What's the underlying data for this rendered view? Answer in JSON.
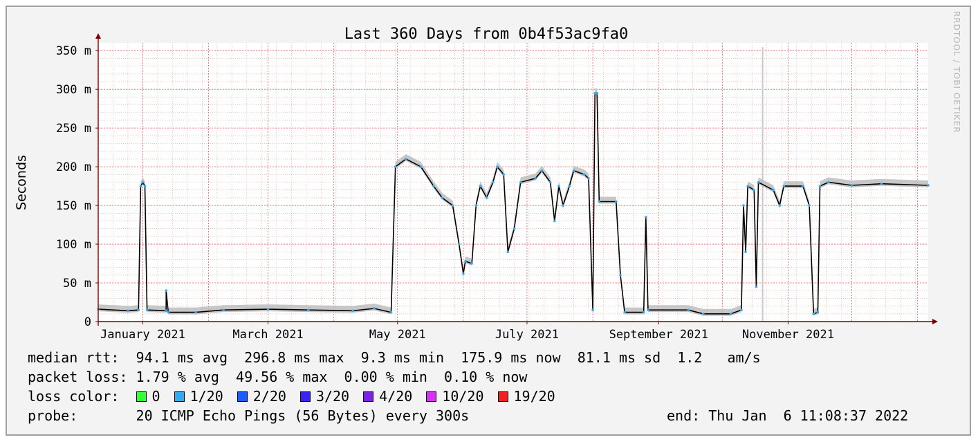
{
  "chart_data": {
    "type": "line",
    "title": "Last 360 Days from 0b4f53ac9fa0",
    "ylabel": "Seconds",
    "xlabel": "",
    "ylim": [
      0,
      0.36
    ],
    "y_ticks": [
      {
        "value": 0,
        "label": "0"
      },
      {
        "value": 0.05,
        "label": "50 m"
      },
      {
        "value": 0.1,
        "label": "100 m"
      },
      {
        "value": 0.15,
        "label": "150 m"
      },
      {
        "value": 0.2,
        "label": "200 m"
      },
      {
        "value": 0.25,
        "label": "250 m"
      },
      {
        "value": 0.3,
        "label": "300 m"
      },
      {
        "value": 0.35,
        "label": "350 m"
      }
    ],
    "x_range": [
      "2020-12-11",
      "2022-01-06"
    ],
    "x_ticks": [
      {
        "date": "2021-01-01",
        "label": "January 2021"
      },
      {
        "date": "2021-03-01",
        "label": "March 2021"
      },
      {
        "date": "2021-05-01",
        "label": "May 2021"
      },
      {
        "date": "2021-07-01",
        "label": "July 2021"
      },
      {
        "date": "2021-09-01",
        "label": "September 2021"
      },
      {
        "date": "2021-11-01",
        "label": "November 2021"
      }
    ],
    "grid": true,
    "series": [
      {
        "name": "median rtt",
        "color": "#000000",
        "points": [
          [
            "2020-12-11",
            0.016
          ],
          [
            "2020-12-25",
            0.014
          ],
          [
            "2020-12-30",
            0.015
          ],
          [
            "2020-12-31",
            0.175
          ],
          [
            "2021-01-01",
            0.18
          ],
          [
            "2021-01-02",
            0.175
          ],
          [
            "2021-01-03",
            0.015
          ],
          [
            "2021-01-12",
            0.014
          ],
          [
            "2021-01-12",
            0.04
          ],
          [
            "2021-01-13",
            0.012
          ],
          [
            "2021-01-26",
            0.012
          ],
          [
            "2021-02-08",
            0.015
          ],
          [
            "2021-03-01",
            0.016
          ],
          [
            "2021-03-20",
            0.015
          ],
          [
            "2021-04-10",
            0.014
          ],
          [
            "2021-04-20",
            0.017
          ],
          [
            "2021-04-28",
            0.012
          ],
          [
            "2021-04-30",
            0.2
          ],
          [
            "2021-05-05",
            0.21
          ],
          [
            "2021-05-12",
            0.2
          ],
          [
            "2021-05-18",
            0.175
          ],
          [
            "2021-05-22",
            0.16
          ],
          [
            "2021-05-27",
            0.15
          ],
          [
            "2021-05-30",
            0.1
          ],
          [
            "2021-06-01",
            0.062
          ],
          [
            "2021-06-02",
            0.078
          ],
          [
            "2021-06-05",
            0.075
          ],
          [
            "2021-06-07",
            0.15
          ],
          [
            "2021-06-09",
            0.175
          ],
          [
            "2021-06-12",
            0.16
          ],
          [
            "2021-06-15",
            0.18
          ],
          [
            "2021-06-17",
            0.2
          ],
          [
            "2021-06-20",
            0.19
          ],
          [
            "2021-06-22",
            0.09
          ],
          [
            "2021-06-25",
            0.12
          ],
          [
            "2021-06-28",
            0.18
          ],
          [
            "2021-07-05",
            0.185
          ],
          [
            "2021-07-08",
            0.195
          ],
          [
            "2021-07-12",
            0.18
          ],
          [
            "2021-07-14",
            0.13
          ],
          [
            "2021-07-16",
            0.175
          ],
          [
            "2021-07-18",
            0.15
          ],
          [
            "2021-07-21",
            0.175
          ],
          [
            "2021-07-23",
            0.195
          ],
          [
            "2021-07-28",
            0.19
          ],
          [
            "2021-07-30",
            0.185
          ],
          [
            "2021-08-01",
            0.015
          ],
          [
            "2021-08-02",
            0.295
          ],
          [
            "2021-08-03",
            0.295
          ],
          [
            "2021-08-04",
            0.155
          ],
          [
            "2021-08-12",
            0.155
          ],
          [
            "2021-08-14",
            0.06
          ],
          [
            "2021-08-16",
            0.012
          ],
          [
            "2021-08-25",
            0.012
          ],
          [
            "2021-08-26",
            0.135
          ],
          [
            "2021-08-27",
            0.015
          ],
          [
            "2021-09-15",
            0.015
          ],
          [
            "2021-09-22",
            0.01
          ],
          [
            "2021-10-05",
            0.01
          ],
          [
            "2021-10-10",
            0.015
          ],
          [
            "2021-10-11",
            0.15
          ],
          [
            "2021-10-12",
            0.09
          ],
          [
            "2021-10-13",
            0.175
          ],
          [
            "2021-10-16",
            0.17
          ],
          [
            "2021-10-17",
            0.045
          ],
          [
            "2021-10-18",
            0.18
          ],
          [
            "2021-10-25",
            0.17
          ],
          [
            "2021-10-28",
            0.15
          ],
          [
            "2021-10-30",
            0.175
          ],
          [
            "2021-11-08",
            0.175
          ],
          [
            "2021-11-11",
            0.15
          ],
          [
            "2021-11-13",
            0.01
          ],
          [
            "2021-11-15",
            0.012
          ],
          [
            "2021-11-16",
            0.175
          ],
          [
            "2021-11-20",
            0.18
          ],
          [
            "2021-12-01",
            0.176
          ],
          [
            "2021-12-15",
            0.178
          ],
          [
            "2022-01-06",
            0.176
          ]
        ]
      }
    ],
    "spikes": [
      {
        "date": "2021-10-20",
        "value": 0.36,
        "color": "#c8c8c8"
      }
    ],
    "colors": {
      "background": "#f3f3f3",
      "canvas": "#ffffff",
      "grid": "#e8a0a0",
      "major_grid": "#e06060",
      "axis": "#800000",
      "median": "#000000",
      "dots": "#33aaee"
    }
  },
  "legend": {
    "median_rtt": "median rtt:  94.1 ms avg  296.8 ms max  9.3 ms min  175.9 ms now  81.1 ms sd  1.2   am/s",
    "packet_loss": "packet loss: 1.79 % avg  49.56 % max  0.00 % min  0.10 % now",
    "loss_color_label": "loss color:",
    "loss_colors": [
      {
        "label": "0",
        "color": "#33ff33"
      },
      {
        "label": "1/20",
        "color": "#33aaee"
      },
      {
        "label": "2/20",
        "color": "#1a5cff"
      },
      {
        "label": "3/20",
        "color": "#3a22f0"
      },
      {
        "label": "4/20",
        "color": "#7a22e8"
      },
      {
        "label": "10/20",
        "color": "#d233f0"
      },
      {
        "label": "19/20",
        "color": "#ee2222"
      }
    ],
    "probe": "probe:       20 ICMP Echo Pings (56 Bytes) every 300s",
    "end": "end: Thu Jan  6 11:08:37 2022"
  },
  "watermark": "RRDTOOL / TOBI OETIKER"
}
